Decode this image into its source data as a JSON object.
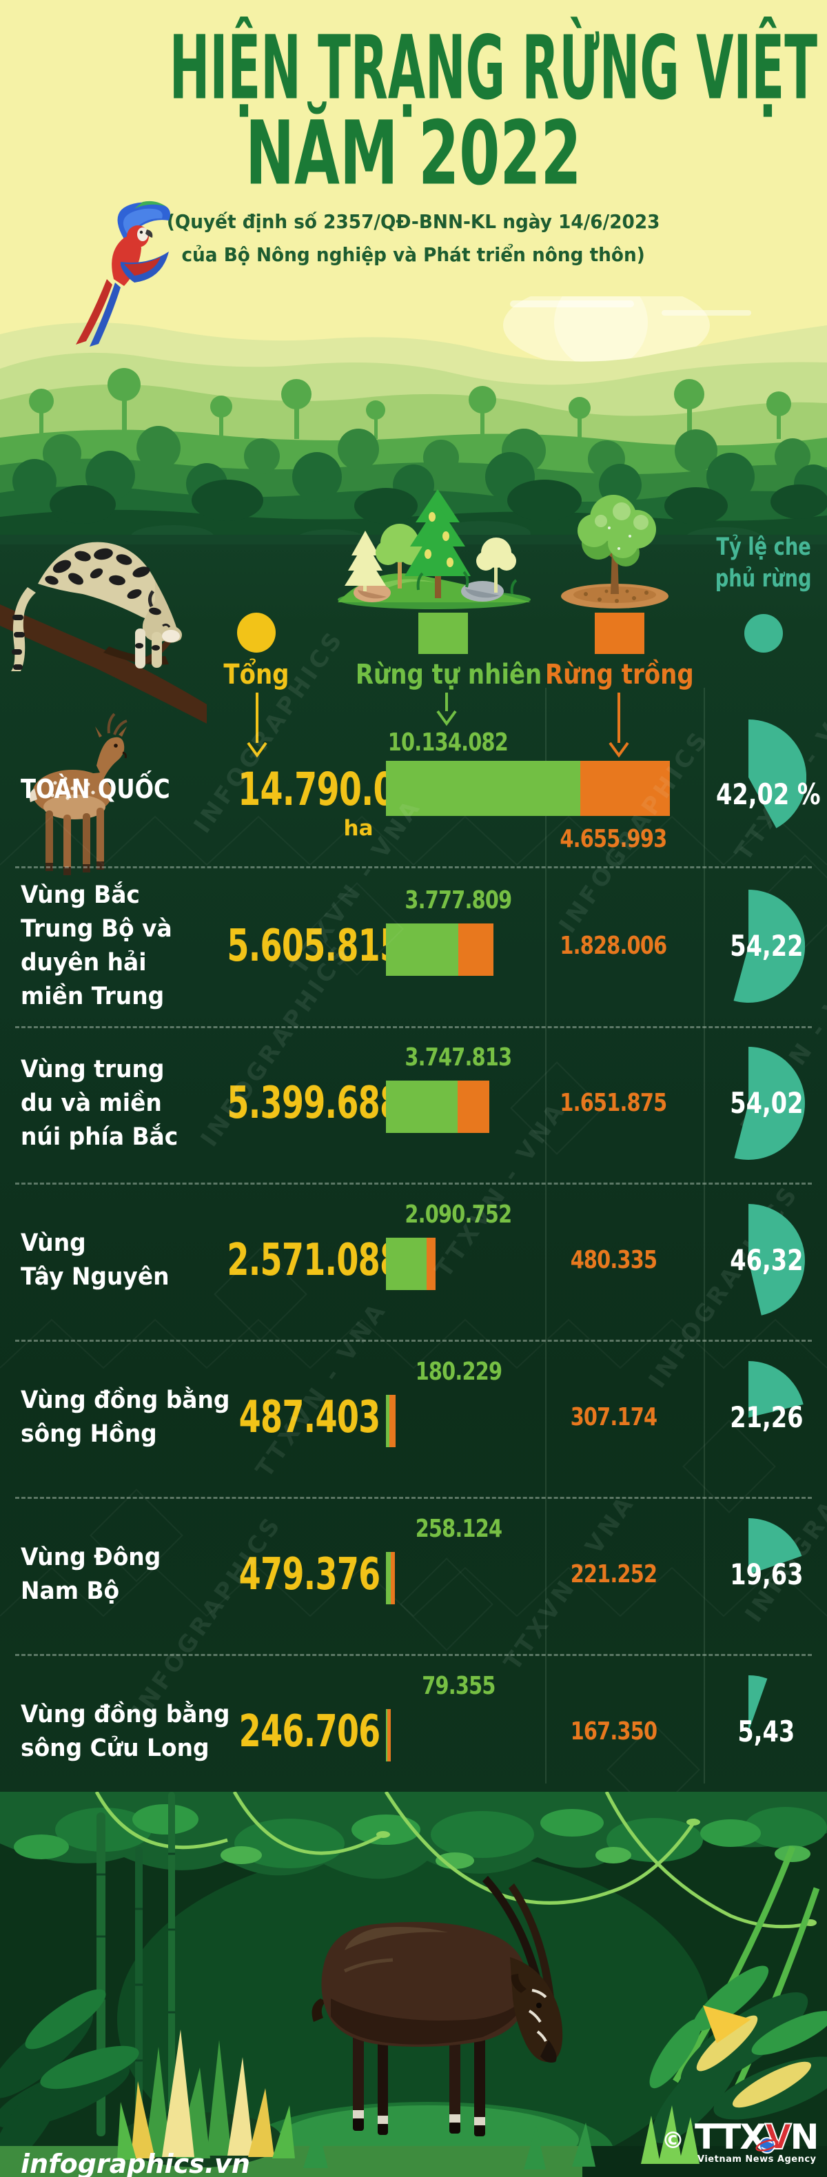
{
  "header": {
    "title_line1": "HIỆN TRẠNG RỪNG VIỆT NAM",
    "title_line2": "NĂM 2022",
    "subtitle_line1": "(Quyết định số 2357/QĐ-BNN-KL ngày 14/6/2023",
    "subtitle_line2": "của Bộ Nông nghiệp và Phát triển nông thôn)"
  },
  "legend": {
    "total_label": "Tổng",
    "natural_label": "Rừng tự nhiên",
    "planted_label": "Rừng trồng",
    "coverage_label_line1": "Tỷ lệ che",
    "coverage_label_line2": "phủ rừng"
  },
  "unit_label": "ha",
  "colors": {
    "total_yellow": "#f2c318",
    "natural_green": "#72bf44",
    "planted_orange": "#e8781e",
    "coverage_teal": "#3eb691"
  },
  "chart_data": {
    "type": "bar",
    "title": "Hiện trạng rừng Việt Nam năm 2022",
    "unit": "ha",
    "series": [
      "Tổng",
      "Rừng tự nhiên",
      "Rừng trồng",
      "Tỷ lệ che phủ rừng (%)"
    ],
    "rows": [
      {
        "region_lines": [
          "TOÀN QUỐC"
        ],
        "total": 14790075,
        "total_str": "14.790.075",
        "natural": 10134082,
        "natural_str": "10.134.082",
        "planted": 4655993,
        "planted_str": "4.655.993",
        "coverage_pct": 42.02,
        "coverage_str": "42,02",
        "coverage_suffix": " %",
        "is_total": true
      },
      {
        "region_lines": [
          "Vùng Bắc",
          "Trung Bộ và",
          "duyên hải",
          "miền Trung"
        ],
        "total": 5605815,
        "total_str": "5.605.815",
        "natural": 3777809,
        "natural_str": "3.777.809",
        "planted": 1828006,
        "planted_str": "1.828.006",
        "coverage_pct": 54.22,
        "coverage_str": "54,22",
        "coverage_suffix": "",
        "is_total": false
      },
      {
        "region_lines": [
          "Vùng trung",
          "du và miền",
          "núi phía Bắc"
        ],
        "total": 5399688,
        "total_str": "5.399.688",
        "natural": 3747813,
        "natural_str": "3.747.813",
        "planted": 1651875,
        "planted_str": "1.651.875",
        "coverage_pct": 54.02,
        "coverage_str": "54,02",
        "coverage_suffix": "",
        "is_total": false
      },
      {
        "region_lines": [
          "Vùng",
          "Tây Nguyên"
        ],
        "total": 2571088,
        "total_str": "2.571.088",
        "natural": 2090752,
        "natural_str": "2.090.752",
        "planted": 480335,
        "planted_str": "480.335",
        "coverage_pct": 46.32,
        "coverage_str": "46,32",
        "coverage_suffix": "",
        "is_total": false
      },
      {
        "region_lines": [
          "Vùng đồng bằng",
          "sông Hồng"
        ],
        "total": 487403,
        "total_str": "487.403",
        "natural": 180229,
        "natural_str": "180.229",
        "planted": 307174,
        "planted_str": "307.174",
        "coverage_pct": 21.26,
        "coverage_str": "21,26",
        "coverage_suffix": "",
        "is_total": false
      },
      {
        "region_lines": [
          "Vùng Đông",
          "Nam Bộ"
        ],
        "total": 479376,
        "total_str": "479.376",
        "natural": 258124,
        "natural_str": "258.124",
        "planted": 221252,
        "planted_str": "221.252",
        "coverage_pct": 19.63,
        "coverage_str": "19,63",
        "coverage_suffix": "",
        "is_total": false
      },
      {
        "region_lines": [
          "Vùng đồng bằng",
          "sông Cửu Long"
        ],
        "total": 246706,
        "total_str": "246.706",
        "natural": 79355,
        "natural_str": "79.355",
        "planted": 167350,
        "planted_str": "167.350",
        "coverage_pct": 5.43,
        "coverage_str": "5,43",
        "coverage_suffix": "",
        "is_total": false
      }
    ]
  },
  "watermarks": [
    "TTXVN - VNA",
    "INFOGRAPHICS"
  ],
  "footer": {
    "website": "infographics.vn",
    "copyright_symbol": "©",
    "agency_acronym": "TTXVN",
    "agency_name": "Vietnam News Agency"
  }
}
